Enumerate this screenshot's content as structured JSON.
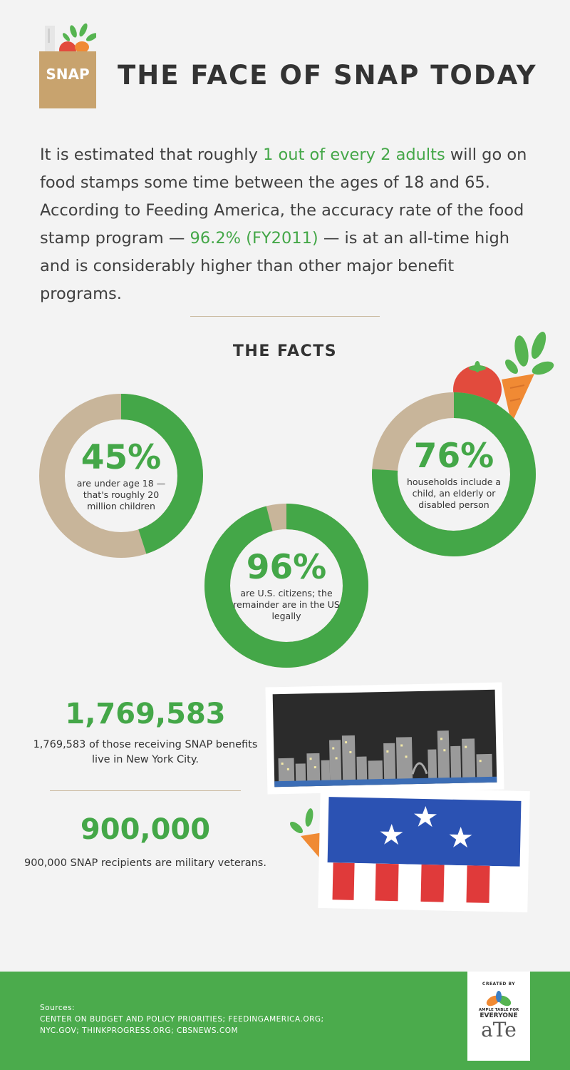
{
  "header": {
    "logo_text": "SNAP",
    "title": "THE FACE OF SNAP TODAY"
  },
  "intro": {
    "part1": "It is estimated that roughly ",
    "highlight1": "1 out of every 2 adults",
    "part2": " will go on food stamps some time between the ages of 18 and 65. According to Feeding America, the accuracy rate of the food stamp program — ",
    "highlight2": "96.2% (FY2011)",
    "part3": " — is at an all-time high and is considerably higher than other major benefit programs."
  },
  "facts": {
    "title": "THE FACTS",
    "donuts": [
      {
        "percent": 45,
        "label": "45%",
        "desc": "are under age 18 — that's roughly 20 million children"
      },
      {
        "percent": 96,
        "label": "96%",
        "desc": "are U.S. citizens; the remainder are in the US legally"
      },
      {
        "percent": 76,
        "label": "76%",
        "desc": "households include a child, an elderly or disabled person"
      }
    ],
    "stats": [
      {
        "number": "1,769,583",
        "desc": "1,769,583 of those receiving SNAP benefits live in New York City."
      },
      {
        "number": "900,000",
        "desc": "900,000 SNAP recipients are military veterans."
      }
    ]
  },
  "footer": {
    "sources_label": "Sources:",
    "sources_line1": "CENTER ON BUDGET AND POLICY PRIORITIES; FEEDINGAMERICA.ORG;",
    "sources_line2": "NYC.GOV; THINKPROGRESS.ORG; CBSNEWS.COM",
    "badge_created": "CREATED BY",
    "badge_tag1": "AMPLE TABLE FOR",
    "badge_tag2": "EVERYONE",
    "badge_word": "aTe"
  },
  "colors": {
    "green": "#44a748",
    "tan": "#c8b59a",
    "footer_green": "#4bab4c"
  }
}
